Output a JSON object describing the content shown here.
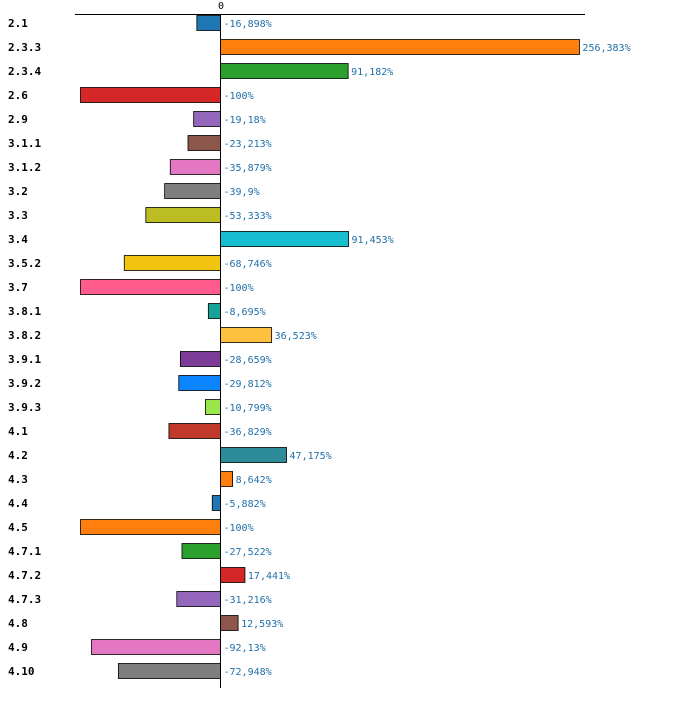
{
  "chart_data": {
    "type": "bar",
    "orientation": "horizontal",
    "title": "",
    "xlabel": "",
    "ylabel": "",
    "axis_tick_label": "0",
    "xlim": [
      -100,
      256.383
    ],
    "value_suffix": "%",
    "categories": [
      "2.1",
      "2.3.3",
      "2.3.4",
      "2.6",
      "2.9",
      "3.1.1",
      "3.1.2",
      "3.2",
      "3.3",
      "3.4",
      "3.5.2",
      "3.7",
      "3.8.1",
      "3.8.2",
      "3.9.1",
      "3.9.2",
      "3.9.3",
      "4.1",
      "4.2",
      "4.3",
      "4.4",
      "4.5",
      "4.7.1",
      "4.7.2",
      "4.7.3",
      "4.8",
      "4.9",
      "4.10"
    ],
    "values": [
      -16.898,
      256.383,
      91.182,
      -100,
      -19.18,
      -23.213,
      -35.879,
      -39.9,
      -53.333,
      91.453,
      -68.746,
      -100,
      -8.695,
      36.523,
      -28.659,
      -29.812,
      -10.799,
      -36.829,
      47.175,
      8.642,
      -5.882,
      -100,
      -27.522,
      17.441,
      -31.216,
      12.593,
      -92.13,
      -72.948
    ],
    "value_labels": [
      "-16,898%",
      "256,383%",
      "91,182%",
      "-100%",
      "-19,18%",
      "-23,213%",
      "-35,879%",
      "-39,9%",
      "-53,333%",
      "91,453%",
      "-68,746%",
      "-100%",
      "-8,695%",
      "36,523%",
      "-28,659%",
      "-29,812%",
      "-10,799%",
      "-36,829%",
      "47,175%",
      "8,642%",
      "-5,882%",
      "-100%",
      "-27,522%",
      "17,441%",
      "-31,216%",
      "12,593%",
      "-92,13%",
      "-72,948%"
    ],
    "colors": [
      "#1f77b4",
      "#ff7f0e",
      "#2ca02c",
      "#d62728",
      "#9467bd",
      "#8c564b",
      "#e377c2",
      "#7f7f7f",
      "#bcbd22",
      "#17becf",
      "#f1c40f",
      "#ff5c8d",
      "#17a39a",
      "#ffc040",
      "#7d3c98",
      "#0a84ff",
      "#99e64d",
      "#c0392b",
      "#2e8b9a",
      "#ff7f0e",
      "#1f77b4",
      "#ff7f0e",
      "#2ca02c",
      "#d62728",
      "#9467bd",
      "#8c564b",
      "#e377c2",
      "#7f7f7f"
    ]
  }
}
